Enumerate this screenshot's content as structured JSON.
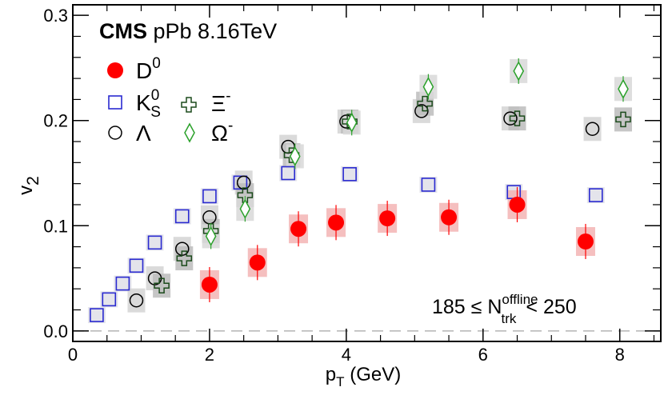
{
  "chart_data": {
    "type": "scatter",
    "title": "",
    "experiment": "CMS",
    "system": "pPb 8.16TeV",
    "xlabel": {
      "main": "p",
      "sub": "T",
      "unit": " (GeV)"
    },
    "ylabel": {
      "main": "v",
      "sub": "2"
    },
    "xlim": [
      0,
      8.6
    ],
    "ylim": [
      -0.01,
      0.31
    ],
    "xticks": [
      0,
      2,
      4,
      6,
      8
    ],
    "xtick_labels": [
      "0",
      "2",
      "4",
      "6",
      "8"
    ],
    "yticks": [
      0.0,
      0.1,
      0.2,
      0.3
    ],
    "ytick_labels": [
      "0.0",
      "0.1",
      "0.2",
      "0.3"
    ],
    "multiplicity": {
      "low": "185",
      "leq": "≤",
      "N": "N",
      "sup": "offline",
      "sub": "trk",
      "lt": "<",
      "high": "250"
    },
    "legend": [
      {
        "key": "D0",
        "label": "D",
        "sup": "0",
        "sub": ""
      },
      {
        "key": "K0S",
        "label": "K",
        "sup": "0",
        "sub": "S"
      },
      {
        "key": "Xi",
        "label": "Ξ",
        "sup": "-",
        "sub": ""
      },
      {
        "key": "Lambda",
        "label": "Λ",
        "sup": "",
        "sub": ""
      },
      {
        "key": "Omega",
        "label": "Ω",
        "sup": "-",
        "sub": ""
      }
    ],
    "series": [
      {
        "name": "K0S",
        "marker": "square",
        "color": "#2a2ad0",
        "sys_color": "#dfdfe8",
        "points": [
          [
            0.35,
            0.015
          ],
          [
            0.53,
            0.03
          ],
          [
            0.73,
            0.045
          ],
          [
            0.93,
            0.062
          ],
          [
            1.2,
            0.084
          ],
          [
            1.6,
            0.109
          ],
          [
            2.0,
            0.128
          ],
          [
            2.45,
            0.141
          ],
          [
            3.15,
            0.15
          ],
          [
            4.05,
            0.149
          ],
          [
            5.2,
            0.139
          ],
          [
            6.45,
            0.132
          ],
          [
            7.65,
            0.129
          ]
        ]
      },
      {
        "name": "Lambda",
        "marker": "circle",
        "color": "#000000",
        "sys_color": "#d3d3d3",
        "points": [
          [
            0.93,
            0.029
          ],
          [
            1.2,
            0.05
          ],
          [
            1.6,
            0.078
          ],
          [
            2.0,
            0.108
          ],
          [
            2.5,
            0.141
          ],
          [
            3.15,
            0.175
          ],
          [
            4.0,
            0.199
          ],
          [
            5.1,
            0.209
          ],
          [
            6.4,
            0.202
          ],
          [
            7.6,
            0.192
          ]
        ]
      },
      {
        "name": "Xi",
        "marker": "cross",
        "color": "#1b4a1b",
        "sys_color": "#bcbcbc",
        "points": [
          [
            1.3,
            0.043
          ],
          [
            1.63,
            0.069
          ],
          [
            2.02,
            0.095
          ],
          [
            2.52,
            0.129
          ],
          [
            3.2,
            0.167
          ],
          [
            4.05,
            0.199
          ],
          [
            5.15,
            0.216
          ],
          [
            6.5,
            0.202
          ],
          [
            8.05,
            0.201
          ]
        ]
      },
      {
        "name": "Omega",
        "marker": "diamond",
        "color": "#2aa12a",
        "sys_color": "#d8d8d8",
        "points": [
          [
            2.02,
            0.09
          ],
          [
            2.52,
            0.116
          ],
          [
            3.25,
            0.166
          ],
          [
            4.08,
            0.198
          ],
          [
            5.2,
            0.232
          ],
          [
            6.52,
            0.247
          ],
          [
            8.05,
            0.23
          ]
        ]
      },
      {
        "name": "D0",
        "marker": "filled-circle",
        "color": "#ff0000",
        "sys_color": "#f3b4b4",
        "points": [
          [
            2.0,
            0.044
          ],
          [
            2.7,
            0.065
          ],
          [
            3.3,
            0.097
          ],
          [
            3.85,
            0.103
          ],
          [
            4.6,
            0.107
          ],
          [
            5.5,
            0.108
          ],
          [
            6.5,
            0.12
          ],
          [
            7.5,
            0.085
          ]
        ]
      }
    ]
  }
}
